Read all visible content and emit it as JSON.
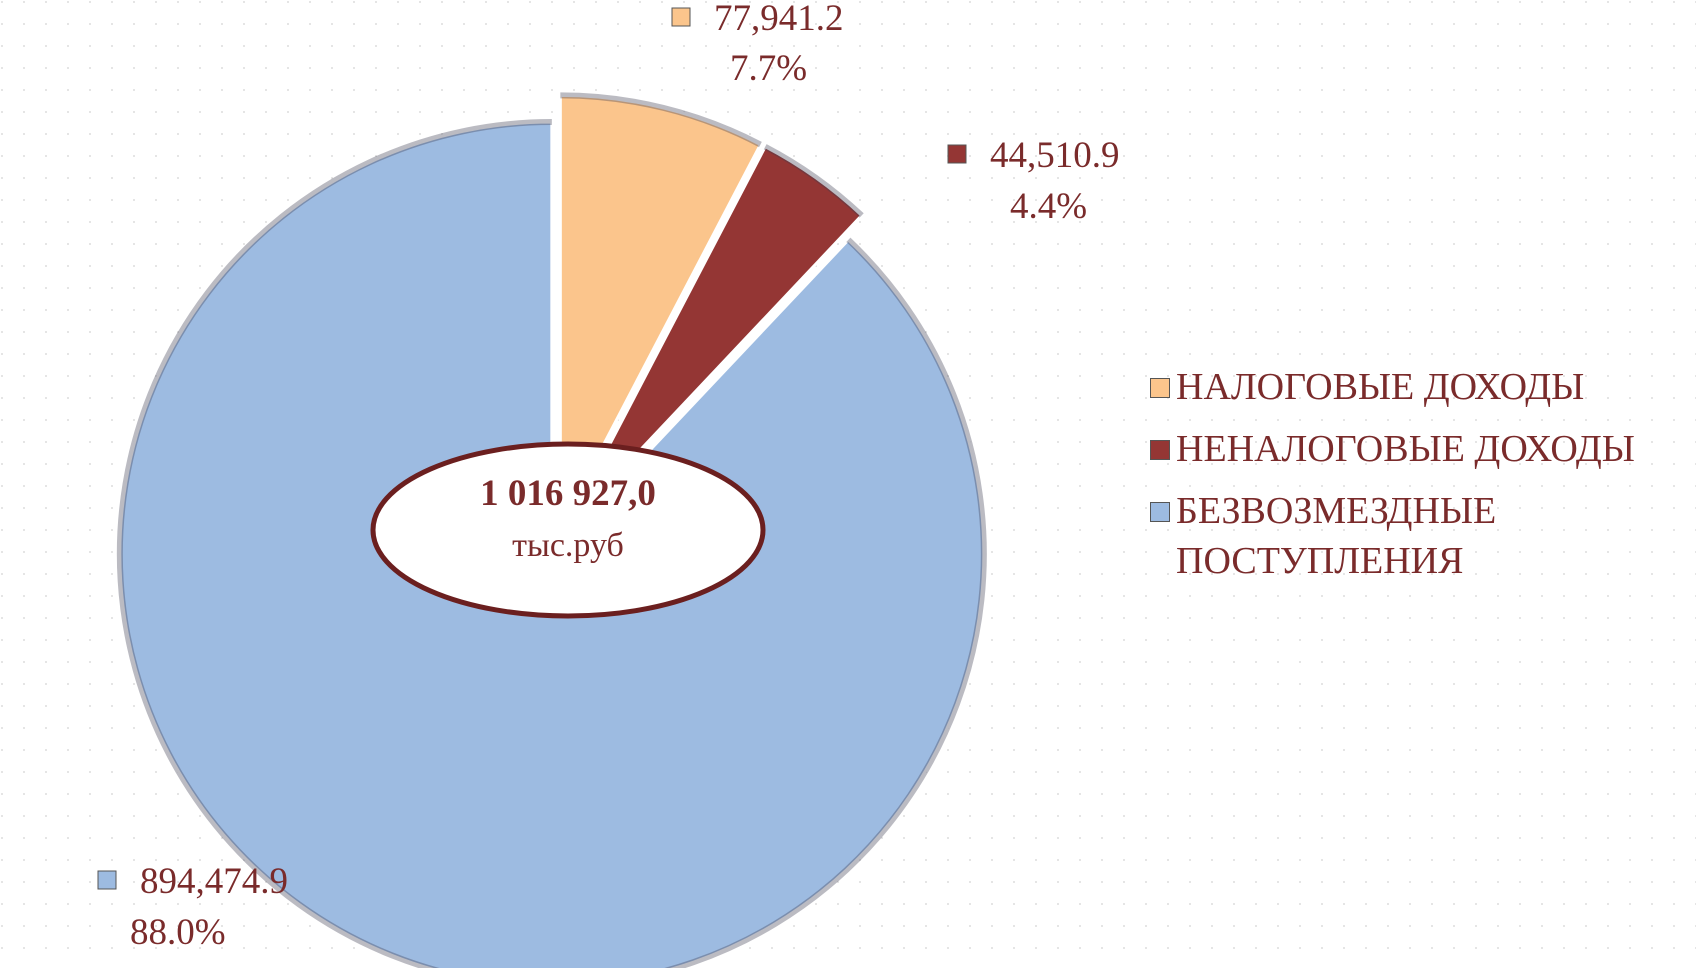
{
  "chart_data": {
    "type": "pie",
    "categories": [
      "НАЛОГОВЫЕ ДОХОДЫ",
      "НЕНАЛОГОВЫЕ ДОХОДЫ",
      "БЕЗВОЗМЕЗДНЫЕ ПОСТУПЛЕНИЯ"
    ],
    "values": [
      77941.2,
      44510.9,
      894474.9
    ],
    "value_labels": [
      "77,941.2",
      "44,510.9",
      "894,474.9"
    ],
    "percentages": [
      7.7,
      4.4,
      88.0
    ],
    "percentage_labels": [
      "7.7%",
      "4.4%",
      "88.0%"
    ],
    "colors": [
      "#fbc58c",
      "#943634",
      "#9dbbe1"
    ],
    "center_label": "1 016 927,0",
    "center_unit": "тыс.руб",
    "legend": "right"
  }
}
